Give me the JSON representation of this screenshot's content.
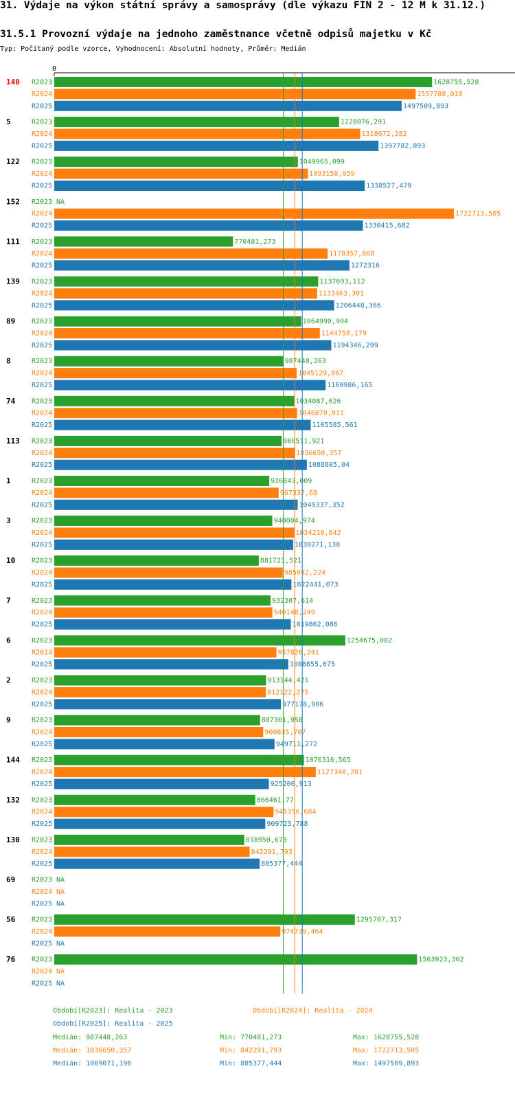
{
  "header": {
    "title": "31. Výdaje na výkon státní správy a samosprávy (dle výkazu FIN 2 - 12 M k 31.12.)",
    "subtitle": "31.5.1 Provozní výdaje na jednoho zaměstnance včetně odpisů majetku v Kč",
    "type_line": "Typ: Počítaný podle vzorce, Vyhodnocení: Absolutní hodnoty, Průměr: Medián"
  },
  "colors": {
    "r2023": "#2ca02c",
    "r2024": "#ff7f0e",
    "r2025": "#1f77b4",
    "highlight": "#ff0000"
  },
  "chart_data": {
    "type": "bar",
    "orientation": "horizontal",
    "axis_zero_label": "0",
    "na_label": "NA",
    "series_names": [
      "R2023",
      "R2024",
      "R2025"
    ],
    "xlim": [
      0,
      1722713.505
    ],
    "highlight_category": "140",
    "categories": [
      "140",
      "5",
      "122",
      "152",
      "111",
      "139",
      "89",
      "8",
      "74",
      "113",
      "1",
      "3",
      "10",
      "7",
      "6",
      "2",
      "9",
      "144",
      "132",
      "130",
      "69",
      "56",
      "76"
    ],
    "value_labels": [
      [
        "1628755,528",
        "1557788,018",
        "1497509,893"
      ],
      [
        "1228076,291",
        "1318672,282",
        "1397782,893"
      ],
      [
        "1049965,099",
        "1093158,959",
        "1338527,479"
      ],
      [
        null,
        "1722713,505",
        "1330415,682"
      ],
      [
        "770481,273",
        "1178357,868",
        "1272316"
      ],
      [
        "1137693,112",
        "1133463,301",
        "1206448,366"
      ],
      [
        "1064990,904",
        "1144758,179",
        "1194346,299"
      ],
      [
        "987448,263",
        "1045129,067",
        "1169986,165"
      ],
      [
        "1034087,626",
        "1046870,011",
        "1105585,561"
      ],
      [
        "980511,921",
        "1036650,357",
        "1088805,04"
      ],
      [
        "926843,009",
        "967337,68",
        "1049337,352"
      ],
      [
        "940004,974",
        "1034216,842",
        "1030271,138"
      ],
      [
        "881721,521",
        "985042,224",
        "1022441,073"
      ],
      [
        "932307,614",
        "940148,249",
        "1019862,086"
      ],
      [
        "1254675,002",
        "957826,241",
        "1008855,675"
      ],
      [
        "913144,421",
        "912122,275",
        "977178,906"
      ],
      [
        "887301,958",
        "900835,707",
        "949711,272"
      ],
      [
        "1076316,565",
        "1127348,201",
        "925206,913"
      ],
      [
        "866461,77",
        "945356,684",
        "909723,788"
      ],
      [
        "818950,673",
        "842291,793",
        "885377,444"
      ],
      [
        null,
        null,
        null
      ],
      [
        "1295707,317",
        "974739,464",
        null
      ],
      [
        "1563923,362",
        null,
        null
      ]
    ],
    "medians": [
      987448.263,
      1036650.357,
      1069071.196
    ]
  },
  "legend": {
    "period_2023": "Období[R2023]: Realita - 2023",
    "period_2024": "Období[R2024]: Realita - 2024",
    "period_2025": "Období[R2025]: Realita - 2025",
    "stats": [
      {
        "median": "Medián: 987448,263",
        "min": "Min: 770481,273",
        "max": "Max: 1628755,528"
      },
      {
        "median": "Medián: 1036650,357",
        "min": "Min: 842291,793",
        "max": "Max: 1722713,505"
      },
      {
        "median": "Medián: 1069071,196",
        "min": "Min: 885377,444",
        "max": "Max: 1497509,893"
      }
    ]
  }
}
